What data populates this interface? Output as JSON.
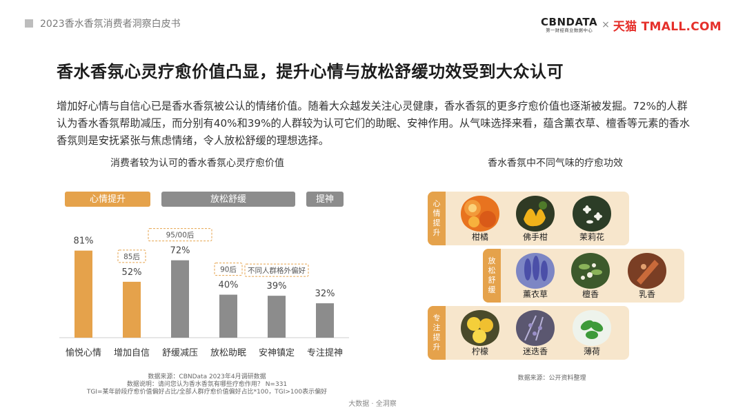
{
  "header": {
    "report_title": "2023香水香氛消费者洞察白皮书",
    "cbn_logo": "CBNDATA",
    "cbn_sub": "第一财经商业数据中心",
    "logo_x": "×",
    "tmall_logo": "天猫 TMALL.COM"
  },
  "main_title": "香水香氛心灵疗愈价值凸显，提升心情与放松舒缓功效受到大众认可",
  "intro": "增加好心情与自信心已是香水香氛被公认的情绪价值。随着大众越发关注心灵健康，香水香氛的更多疗愈价值也逐渐被发掘。72%的人群认为香水香氛帮助减压，而分别有40%和39%的人群较为认可它们的助眠、安神作用。从气味选择来看，蕴含薰衣草、檀香等元素的香水香氛则是安抚紧张与焦虑情绪，令人放松舒缓的理想选择。",
  "chart_data": {
    "type": "bar",
    "title": "消费者较为认可的香水香氛心灵疗愈价值",
    "categories": [
      "愉悦心情",
      "增加自信",
      "舒缓减压",
      "放松助眠",
      "安神镇定",
      "专注提神"
    ],
    "values": [
      81,
      52,
      72,
      40,
      39,
      32
    ],
    "value_labels": [
      "81%",
      "52%",
      "72%",
      "40%",
      "39%",
      "32%"
    ],
    "ylim": [
      0,
      100
    ],
    "groups": [
      {
        "label": "心情提升",
        "categories": [
          0,
          1
        ],
        "color": "#e5a24b"
      },
      {
        "label": "放松舒缓",
        "categories": [
          2,
          3,
          4
        ],
        "color": "#8c8c8c"
      },
      {
        "label": "提神",
        "categories": [
          5
        ],
        "color": "#8c8c8c"
      }
    ],
    "bar_colors": [
      "#e5a24b",
      "#e5a24b",
      "#8c8c8c",
      "#8c8c8c",
      "#8c8c8c",
      "#8c8c8c"
    ],
    "annotations": [
      {
        "text": "85后",
        "category": 1
      },
      {
        "text": "95/00后",
        "category": 2
      },
      {
        "text": "90后",
        "category": 3
      },
      {
        "text": "不同人群格外偏好",
        "category": 4
      }
    ],
    "grid": false
  },
  "scents": {
    "title": "香水香氛中不同气味的疗愈功效",
    "groups": [
      {
        "label": "心情提升",
        "items": [
          "柑橘",
          "佛手柑",
          "茉莉花"
        ]
      },
      {
        "label": "放松舒缓",
        "items": [
          "薰衣草",
          "檀香",
          "乳香"
        ]
      },
      {
        "label": "专注提升",
        "items": [
          "柠檬",
          "迷迭香",
          "薄荷"
        ]
      }
    ]
  },
  "footnotes": {
    "left": [
      "数据来源：CBNData 2023年4月调研数据",
      "数据说明：请问您认为香水香氛有哪些疗愈作用？ N=331",
      "TGI=某年龄段疗愈价值偏好占比/全部人群疗愈价值偏好占比*100，TGI>100表示偏好"
    ],
    "right": "数据来源：公开资料整理"
  },
  "footer": "大数据 · 全洞察",
  "colors": {
    "accent": "#e5a24b",
    "gray": "#8c8c8c",
    "panel": "#f7e6cc"
  }
}
